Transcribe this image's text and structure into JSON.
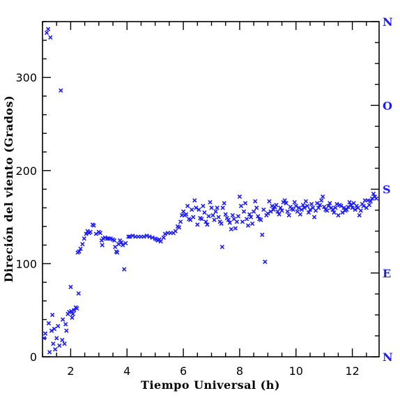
{
  "chart_data": {
    "type": "scatter",
    "title": "",
    "xlabel": "Tiempo Universal (h)",
    "ylabel": "Direción del viento (Grados)",
    "xlim": [
      1.0,
      12.95
    ],
    "ylim": [
      0,
      360
    ],
    "x_ticks": [
      2,
      4,
      6,
      8,
      10,
      12
    ],
    "y_ticks": [
      0,
      100,
      200,
      300
    ],
    "right_axis_labels": [
      {
        "label": "N",
        "value": 0
      },
      {
        "label": "E",
        "value": 90
      },
      {
        "label": "S",
        "value": 180
      },
      {
        "label": "O",
        "value": 270
      },
      {
        "label": "N",
        "value": 360
      }
    ],
    "grid": false,
    "marker": "x",
    "marker_color": "#1a1aff",
    "series": [
      {
        "values": [
          [
            1.05,
            20
          ],
          [
            1.1,
            25
          ],
          [
            1.15,
            348
          ],
          [
            1.2,
            352
          ],
          [
            1.22,
            36
          ],
          [
            1.25,
            5
          ],
          [
            1.28,
            343
          ],
          [
            1.32,
            28
          ],
          [
            1.35,
            45
          ],
          [
            1.38,
            14
          ],
          [
            1.42,
            30
          ],
          [
            1.45,
            8
          ],
          [
            1.5,
            20
          ],
          [
            1.55,
            33
          ],
          [
            1.6,
            12
          ],
          [
            1.65,
            286
          ],
          [
            1.7,
            18
          ],
          [
            1.72,
            40
          ],
          [
            1.78,
            14
          ],
          [
            1.82,
            35
          ],
          [
            1.85,
            28
          ],
          [
            1.9,
            46
          ],
          [
            1.95,
            48
          ],
          [
            2.0,
            75
          ],
          [
            2.02,
            49
          ],
          [
            2.05,
            42
          ],
          [
            2.08,
            46
          ],
          [
            2.12,
            50
          ],
          [
            2.18,
            53
          ],
          [
            2.22,
            52
          ],
          [
            2.28,
            68
          ],
          [
            2.25,
            112
          ],
          [
            2.3,
            113
          ],
          [
            2.35,
            116
          ],
          [
            2.42,
            121
          ],
          [
            2.48,
            127
          ],
          [
            2.55,
            132
          ],
          [
            2.6,
            135
          ],
          [
            2.65,
            133
          ],
          [
            2.7,
            134
          ],
          [
            2.78,
            142
          ],
          [
            2.82,
            141
          ],
          [
            2.9,
            132
          ],
          [
            3.0,
            134
          ],
          [
            3.05,
            133
          ],
          [
            3.1,
            125
          ],
          [
            3.12,
            120
          ],
          [
            3.15,
            127
          ],
          [
            3.22,
            128
          ],
          [
            3.3,
            127
          ],
          [
            3.35,
            127
          ],
          [
            3.42,
            127
          ],
          [
            3.5,
            126
          ],
          [
            3.55,
            125
          ],
          [
            3.58,
            118
          ],
          [
            3.62,
            113
          ],
          [
            3.65,
            112
          ],
          [
            3.7,
            121
          ],
          [
            3.75,
            125
          ],
          [
            3.8,
            123
          ],
          [
            3.85,
            120
          ],
          [
            3.9,
            94
          ],
          [
            3.95,
            122
          ],
          [
            4.05,
            129
          ],
          [
            4.1,
            129
          ],
          [
            4.2,
            130
          ],
          [
            4.3,
            129
          ],
          [
            4.4,
            129
          ],
          [
            4.5,
            129
          ],
          [
            4.6,
            129
          ],
          [
            4.7,
            130
          ],
          [
            4.8,
            129
          ],
          [
            4.9,
            128
          ],
          [
            5.0,
            127
          ],
          [
            5.05,
            126
          ],
          [
            5.1,
            125
          ],
          [
            5.15,
            126
          ],
          [
            5.2,
            124
          ],
          [
            5.3,
            128
          ],
          [
            5.35,
            132
          ],
          [
            5.45,
            133
          ],
          [
            5.55,
            133
          ],
          [
            5.65,
            133
          ],
          [
            5.72,
            135
          ],
          [
            5.8,
            140
          ],
          [
            5.85,
            139
          ],
          [
            5.9,
            145
          ],
          [
            5.95,
            152
          ],
          [
            6.0,
            156
          ],
          [
            6.05,
            152
          ],
          [
            6.1,
            153
          ],
          [
            6.15,
            162
          ],
          [
            6.2,
            148
          ],
          [
            6.25,
            147
          ],
          [
            6.3,
            158
          ],
          [
            6.35,
            150
          ],
          [
            6.4,
            168
          ],
          [
            6.45,
            160
          ],
          [
            6.5,
            142
          ],
          [
            6.55,
            158
          ],
          [
            6.6,
            149
          ],
          [
            6.65,
            148
          ],
          [
            6.7,
            162
          ],
          [
            6.75,
            155
          ],
          [
            6.8,
            145
          ],
          [
            6.85,
            142
          ],
          [
            6.9,
            151
          ],
          [
            6.95,
            166
          ],
          [
            7.0,
            160
          ],
          [
            7.05,
            152
          ],
          [
            7.1,
            147
          ],
          [
            7.15,
            156
          ],
          [
            7.2,
            160
          ],
          [
            7.25,
            150
          ],
          [
            7.3,
            145
          ],
          [
            7.35,
            143
          ],
          [
            7.38,
            118
          ],
          [
            7.4,
            160
          ],
          [
            7.45,
            165
          ],
          [
            7.5,
            153
          ],
          [
            7.55,
            149
          ],
          [
            7.6,
            147
          ],
          [
            7.65,
            144
          ],
          [
            7.7,
            137
          ],
          [
            7.75,
            152
          ],
          [
            7.8,
            148
          ],
          [
            7.85,
            138
          ],
          [
            7.9,
            145
          ],
          [
            7.95,
            151
          ],
          [
            8.0,
            172
          ],
          [
            8.05,
            162
          ],
          [
            8.1,
            145
          ],
          [
            8.15,
            156
          ],
          [
            8.2,
            165
          ],
          [
            8.25,
            148
          ],
          [
            8.3,
            141
          ],
          [
            8.35,
            153
          ],
          [
            8.4,
            150
          ],
          [
            8.45,
            143
          ],
          [
            8.5,
            156
          ],
          [
            8.55,
            167
          ],
          [
            8.6,
            160
          ],
          [
            8.65,
            151
          ],
          [
            8.7,
            148
          ],
          [
            8.75,
            147
          ],
          [
            8.8,
            131
          ],
          [
            8.85,
            158
          ],
          [
            8.9,
            102
          ],
          [
            8.95,
            152
          ],
          [
            9.0,
            154
          ],
          [
            9.05,
            167
          ],
          [
            9.1,
            156
          ],
          [
            9.15,
            162
          ],
          [
            9.2,
            158
          ],
          [
            9.25,
            161
          ],
          [
            9.3,
            163
          ],
          [
            9.35,
            156
          ],
          [
            9.4,
            153
          ],
          [
            9.45,
            160
          ],
          [
            9.5,
            157
          ],
          [
            9.55,
            166
          ],
          [
            9.6,
            168
          ],
          [
            9.65,
            165
          ],
          [
            9.7,
            156
          ],
          [
            9.75,
            152
          ],
          [
            9.8,
            161
          ],
          [
            9.85,
            159
          ],
          [
            9.9,
            158
          ],
          [
            9.95,
            166
          ],
          [
            10.0,
            162
          ],
          [
            10.05,
            156
          ],
          [
            10.1,
            160
          ],
          [
            10.15,
            153
          ],
          [
            10.2,
            158
          ],
          [
            10.25,
            163
          ],
          [
            10.3,
            160
          ],
          [
            10.35,
            167
          ],
          [
            10.4,
            162
          ],
          [
            10.45,
            155
          ],
          [
            10.5,
            158
          ],
          [
            10.55,
            164
          ],
          [
            10.6,
            160
          ],
          [
            10.65,
            150
          ],
          [
            10.7,
            157
          ],
          [
            10.75,
            165
          ],
          [
            10.8,
            160
          ],
          [
            10.85,
            163
          ],
          [
            10.9,
            168
          ],
          [
            10.95,
            172
          ],
          [
            11.0,
            161
          ],
          [
            11.05,
            158
          ],
          [
            11.1,
            157
          ],
          [
            11.15,
            162
          ],
          [
            11.2,
            165
          ],
          [
            11.25,
            160
          ],
          [
            11.3,
            158
          ],
          [
            11.35,
            155
          ],
          [
            11.4,
            160
          ],
          [
            11.45,
            164
          ],
          [
            11.5,
            152
          ],
          [
            11.55,
            163
          ],
          [
            11.6,
            162
          ],
          [
            11.65,
            155
          ],
          [
            11.7,
            160
          ],
          [
            11.75,
            157
          ],
          [
            11.8,
            158
          ],
          [
            11.85,
            161
          ],
          [
            11.9,
            166
          ],
          [
            11.95,
            163
          ],
          [
            12.0,
            160
          ],
          [
            12.05,
            165
          ],
          [
            12.1,
            158
          ],
          [
            12.15,
            162
          ],
          [
            12.2,
            160
          ],
          [
            12.25,
            152
          ],
          [
            12.3,
            157
          ],
          [
            12.35,
            164
          ],
          [
            12.4,
            162
          ],
          [
            12.45,
            168
          ],
          [
            12.5,
            160
          ],
          [
            12.55,
            168
          ],
          [
            12.6,
            163
          ],
          [
            12.65,
            167
          ],
          [
            12.7,
            170
          ],
          [
            12.75,
            175
          ],
          [
            12.8,
            172
          ],
          [
            12.85,
            170
          ]
        ]
      }
    ]
  }
}
